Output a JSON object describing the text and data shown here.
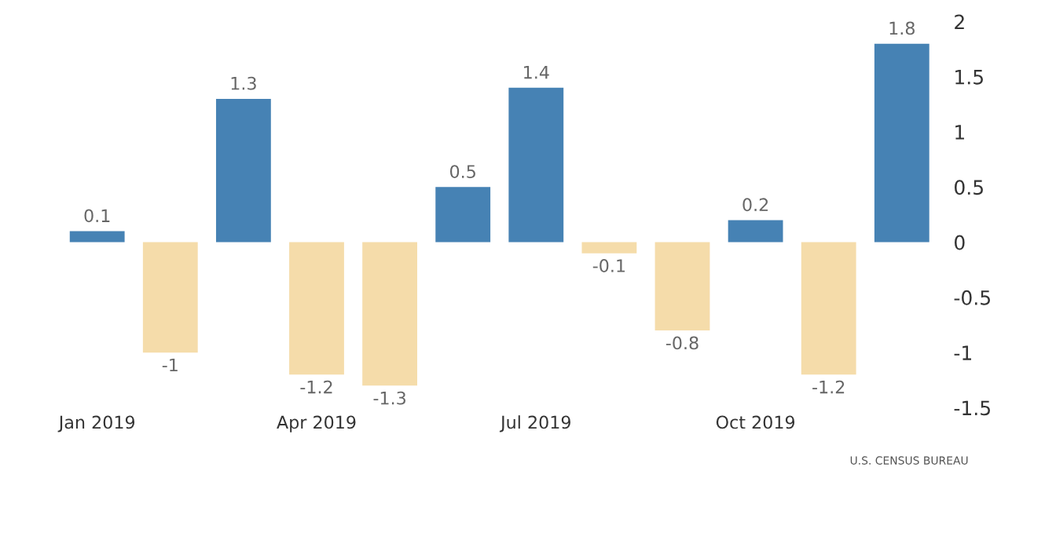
{
  "chart_data": {
    "type": "bar",
    "categories": [
      "Jan 2019",
      null,
      null,
      "Apr 2019",
      null,
      null,
      "Jul 2019",
      null,
      null,
      "Oct 2019",
      null,
      null
    ],
    "values": [
      0.1,
      -1,
      1.3,
      -1.2,
      -1.3,
      0.5,
      1.4,
      -0.1,
      -0.8,
      0.2,
      -1.2,
      1.8
    ],
    "colors": [
      "#4682b4",
      "#f5dcaa",
      "#4682b4",
      "#f5dcaa",
      "#f5dcaa",
      "#4682b4",
      "#4682b4",
      "#f5dcaa",
      "#f5dcaa",
      "#4682b4",
      "#f5dcaa",
      "#4682b4"
    ],
    "ylim": [
      -1.5,
      2
    ],
    "yticks": [
      {
        "value": -1.5,
        "label": "-1.5"
      },
      {
        "value": -1,
        "label": "-1"
      },
      {
        "value": -0.5,
        "label": "-0.5"
      },
      0,
      0.5,
      1,
      1.5,
      2
    ],
    "data_labels": true,
    "grid": false,
    "annotations": [
      "U.S. CENSUS BUREAU"
    ]
  }
}
